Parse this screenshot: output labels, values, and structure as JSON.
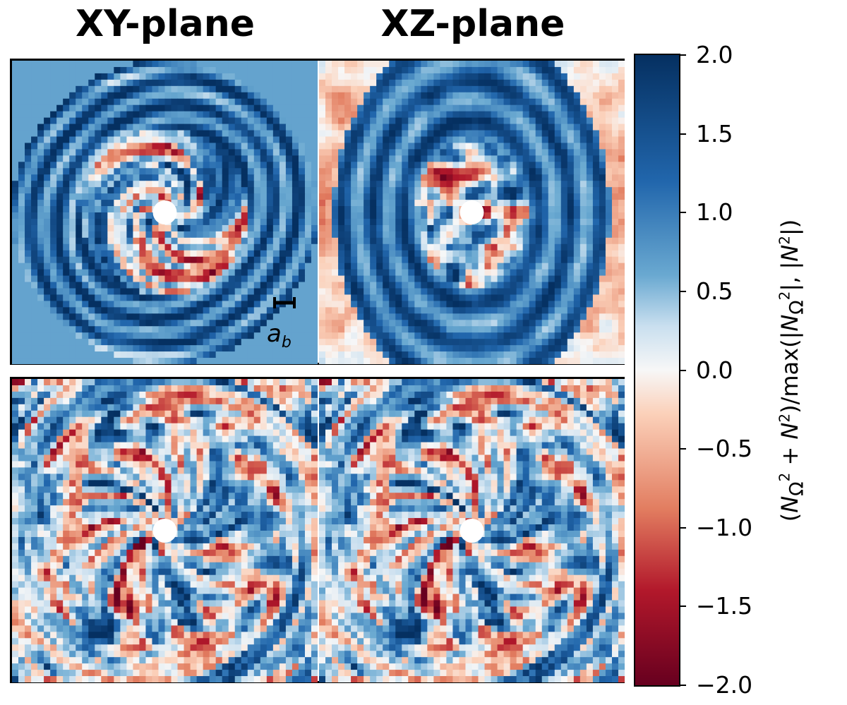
{
  "titles": {
    "left": "XY-plane",
    "right": "XZ-plane"
  },
  "scale_bar": {
    "label_main": "a",
    "label_sub": "b"
  },
  "colorbar": {
    "label_html": "(<i>N</i><sub>Ω</sub><sup>2</sup> + <i>N</i><sup>2</sup>)/max(|<i>N</i><sub>Ω</sub><sup>2</sup>|, |<i>N</i><sup>2</sup>|)",
    "ticks": [
      "2.0",
      "1.5",
      "1.0",
      "0.5",
      "0.0",
      "−0.5",
      "−1.0",
      "−1.5",
      "−2.0"
    ],
    "tick_values": [
      2.0,
      1.5,
      1.0,
      0.5,
      0.0,
      -0.5,
      -1.0,
      -1.5,
      -2.0
    ],
    "range": [
      -2.0,
      2.0
    ],
    "colormap": "RdBu",
    "colors": {
      "max": "#053061",
      "high": "#2166ac",
      "mid_high": "#6aa9d1",
      "light": "#c9dfef",
      "zero": "#f7f7f7",
      "low_light": "#fbd0b9",
      "low": "#e27d60",
      "min": "#67001f"
    }
  },
  "chart_data": [
    {
      "type": "heatmap",
      "panel": "top-left",
      "plane": "XY-plane",
      "style": "ring",
      "value_range": [
        -2.0,
        2.0
      ]
    },
    {
      "type": "heatmap",
      "panel": "top-right",
      "plane": "XZ-plane",
      "style": "lobes",
      "value_range": [
        -2.0,
        2.0
      ]
    },
    {
      "type": "heatmap",
      "panel": "bottom-left",
      "plane": "XY-plane",
      "style": "turbulent",
      "value_range": [
        -2.0,
        2.0
      ]
    },
    {
      "type": "heatmap",
      "panel": "bottom-right",
      "plane": "XZ-plane",
      "style": "turbulent",
      "value_range": [
        -2.0,
        2.0
      ]
    }
  ]
}
